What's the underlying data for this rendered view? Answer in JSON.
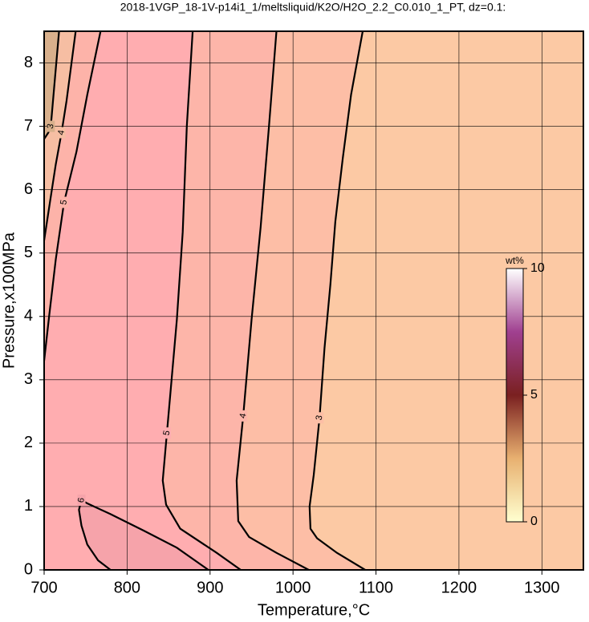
{
  "chart_data": {
    "type": "contour",
    "title": "2018-1VGP_18-1V-p14i1_1/meltsliquid/K2O/H2O_2.2_C0.010_1_PT, dz=0.1:",
    "x_label": "Temperature,°C",
    "y_label": "Pressure,x100MPa",
    "xlim": [
      700,
      1350
    ],
    "ylim": [
      0,
      8.5
    ],
    "xticks": [
      700,
      800,
      900,
      1000,
      1100,
      1200,
      1300
    ],
    "yticks": [
      0,
      1,
      2,
      3,
      4,
      5,
      6,
      7,
      8
    ],
    "grid": true,
    "background": "#fcc9a4",
    "contours": [
      {
        "level": 3,
        "fill": "#fdbea6",
        "x": [
          1087,
          1053,
          1029,
          1021,
          1020,
          1025,
          1032,
          1038,
          1045,
          1051,
          1060,
          1070,
          1084
        ],
        "y": [
          0,
          0.27,
          0.5,
          0.65,
          1.0,
          1.5,
          2.4,
          3.5,
          4.5,
          5.5,
          6.5,
          7.5,
          8.5
        ]
      },
      {
        "level": 4,
        "fill": "#fdb5a9",
        "x": [
          1019,
          980,
          947,
          934,
          932,
          940,
          950,
          961,
          971,
          980
        ],
        "y": [
          0,
          0.27,
          0.52,
          0.77,
          1.41,
          2.43,
          3.95,
          5.41,
          7.0,
          8.5
        ]
      },
      {
        "level": 5,
        "fill": "#ffadb0",
        "x": [
          937,
          908,
          864,
          847,
          843,
          848,
          860,
          867,
          872,
          879
        ],
        "y": [
          0,
          0.27,
          0.65,
          1.03,
          1.41,
          2.16,
          3.95,
          5.33,
          7.0,
          8.5
        ]
      },
      {
        "level": 6,
        "fill": "#f6a3aa",
        "x": [
          898,
          860,
          820,
          780,
          752,
          745,
          742,
          745,
          752,
          765,
          780
        ],
        "y": [
          0,
          0.35,
          0.62,
          0.88,
          1.05,
          1.1,
          0.95,
          0.7,
          0.4,
          0.15,
          0
        ]
      },
      {
        "level": 5,
        "fill": "#fdb3a9",
        "x": [
          700,
          706,
          714,
          724,
          739,
          752,
          768
        ],
        "y": [
          3.3,
          4.0,
          4.9,
          5.8,
          6.6,
          7.5,
          8.5
        ]
      },
      {
        "level": 4,
        "fill": "#f6bea3",
        "x": [
          700,
          707,
          714,
          721,
          727,
          738
        ],
        "y": [
          5.2,
          5.8,
          6.4,
          6.9,
          7.4,
          8.5
        ]
      },
      {
        "level": 3,
        "fill": "#d8b08c",
        "x": [
          700,
          705,
          708,
          712,
          718
        ],
        "y": [
          6.8,
          6.9,
          7.0,
          7.6,
          8.5
        ]
      }
    ],
    "colorbar": {
      "label": "wt%",
      "lim": [
        0,
        10
      ],
      "ticks": [
        0,
        5,
        10
      ]
    }
  }
}
